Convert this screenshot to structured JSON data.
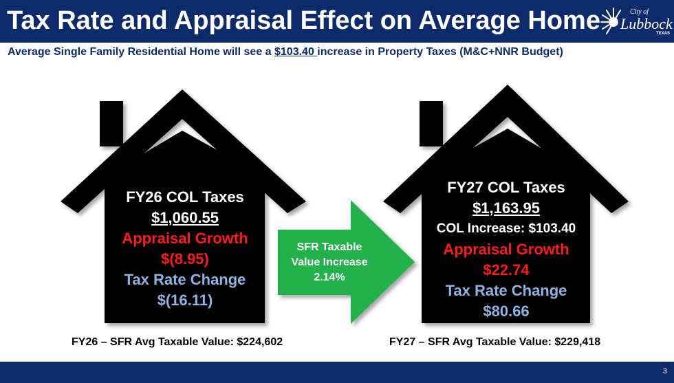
{
  "header": {
    "title": "Tax Rate and Appraisal Effect on Average Home",
    "logo": {
      "small": "City of",
      "main": "Lubbock",
      "tiny": "TEXAS"
    }
  },
  "subtitle": {
    "before": "Average Single Family Residential Home will see a ",
    "amount": "$103.40 ",
    "after": "increase in Property Taxes (M&C+NNR Budget)"
  },
  "house_left": {
    "title": "FY26 COL Taxes",
    "total": "$1,060.55",
    "appraisal_label": "Appraisal Growth",
    "appraisal_value": "$(8.95)",
    "rate_label": "Tax Rate Change",
    "rate_value": "$(16.11)",
    "footnote": "FY26 – SFR Avg Taxable Value: $224,602"
  },
  "arrow": {
    "line1": "SFR Taxable",
    "line2": "Value Increase",
    "line3": "2.14%"
  },
  "house_right": {
    "title": "FY27 COL Taxes",
    "total": "$1,163.95",
    "increase": "COL Increase: $103.40",
    "appraisal_label": "Appraisal Growth",
    "appraisal_value": "$22.74",
    "rate_label": "Tax Rate Change",
    "rate_value": "$80.66",
    "footnote": "FY27 – SFR Avg Taxable Value: $229,418"
  },
  "footer": {
    "page_number": "3"
  },
  "colors": {
    "navy": "#0d2a6b",
    "house": "#000000",
    "arrow_green": "#22b14c",
    "red": "#ff1a1a",
    "blue": "#8db3e2"
  }
}
